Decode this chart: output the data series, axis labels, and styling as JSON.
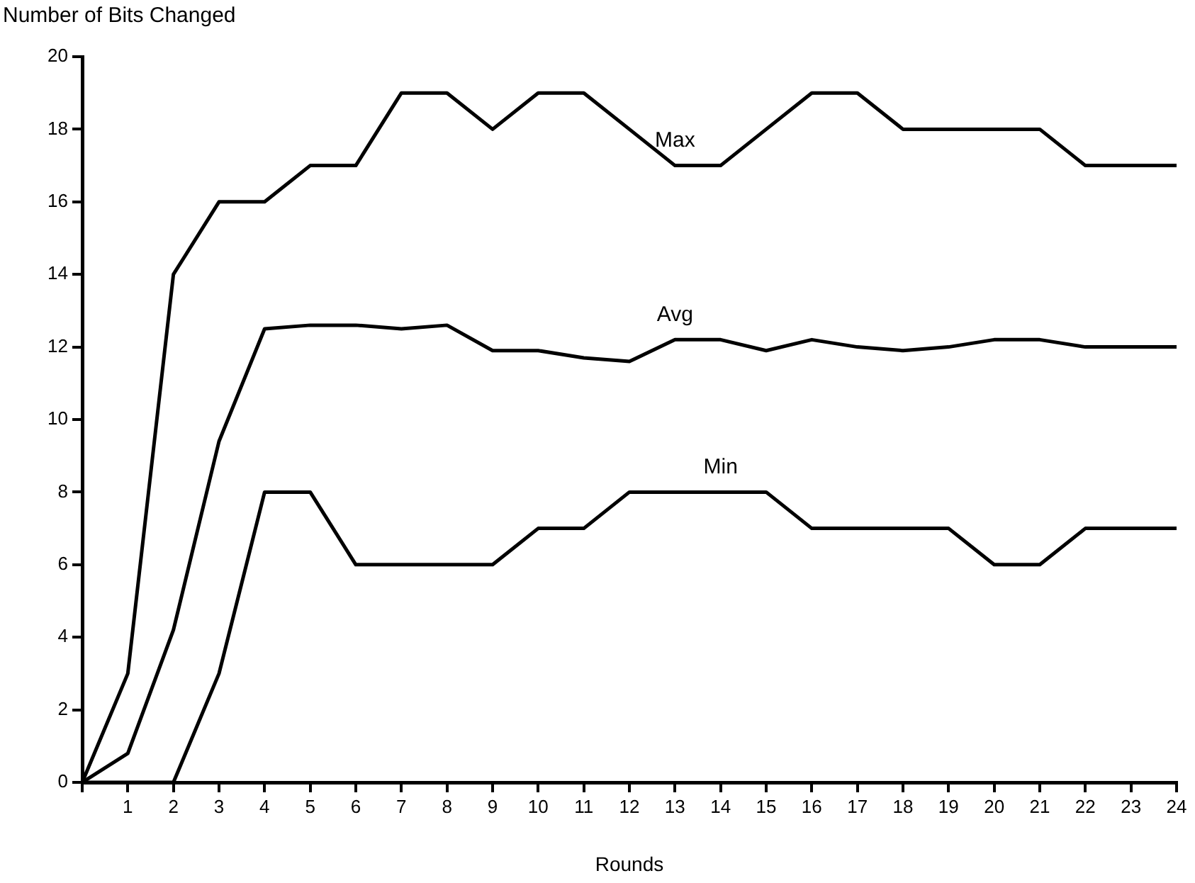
{
  "chart_data": {
    "type": "line",
    "xlabel": "Rounds",
    "ylabel": "Number of Bits Changed",
    "x": [
      0,
      1,
      2,
      3,
      4,
      5,
      6,
      7,
      8,
      9,
      10,
      11,
      12,
      13,
      14,
      15,
      16,
      17,
      18,
      19,
      20,
      21,
      22,
      23,
      24
    ],
    "xlim": [
      0,
      24
    ],
    "xticks": [
      {
        "value": 0,
        "label": null
      },
      1,
      2,
      3,
      4,
      5,
      6,
      7,
      8,
      9,
      10,
      11,
      12,
      13,
      14,
      15,
      16,
      17,
      18,
      19,
      20,
      21,
      22,
      23,
      24
    ],
    "ylim": [
      0,
      20
    ],
    "yticks": [
      0,
      2,
      4,
      6,
      8,
      10,
      12,
      14,
      16,
      18,
      20
    ],
    "grid": false,
    "legend": false,
    "marker": "none",
    "line_style": "solid",
    "series": [
      {
        "name": "Max",
        "color": "#000000",
        "values": [
          0,
          3,
          14,
          16,
          16,
          17,
          17,
          19,
          19,
          18,
          19,
          19,
          18,
          17,
          17,
          18,
          19,
          19,
          18,
          18,
          18,
          18,
          17,
          17,
          17
        ]
      },
      {
        "name": "Avg",
        "color": "#000000",
        "values": [
          0,
          0.8,
          4.2,
          9.4,
          12.5,
          12.6,
          12.6,
          12.5,
          12.6,
          11.9,
          11.9,
          11.7,
          11.6,
          12.2,
          12.2,
          11.9,
          12.2,
          12.0,
          11.9,
          12.0,
          12.2,
          12.2,
          12.0,
          12.0,
          12.0
        ]
      },
      {
        "name": "Min",
        "color": "#000000",
        "values": [
          0,
          0,
          0,
          3,
          8,
          8,
          6,
          6,
          6,
          6,
          7,
          7,
          8,
          8,
          8,
          8,
          7,
          7,
          7,
          7,
          6,
          6,
          7,
          7,
          7
        ]
      }
    ]
  }
}
